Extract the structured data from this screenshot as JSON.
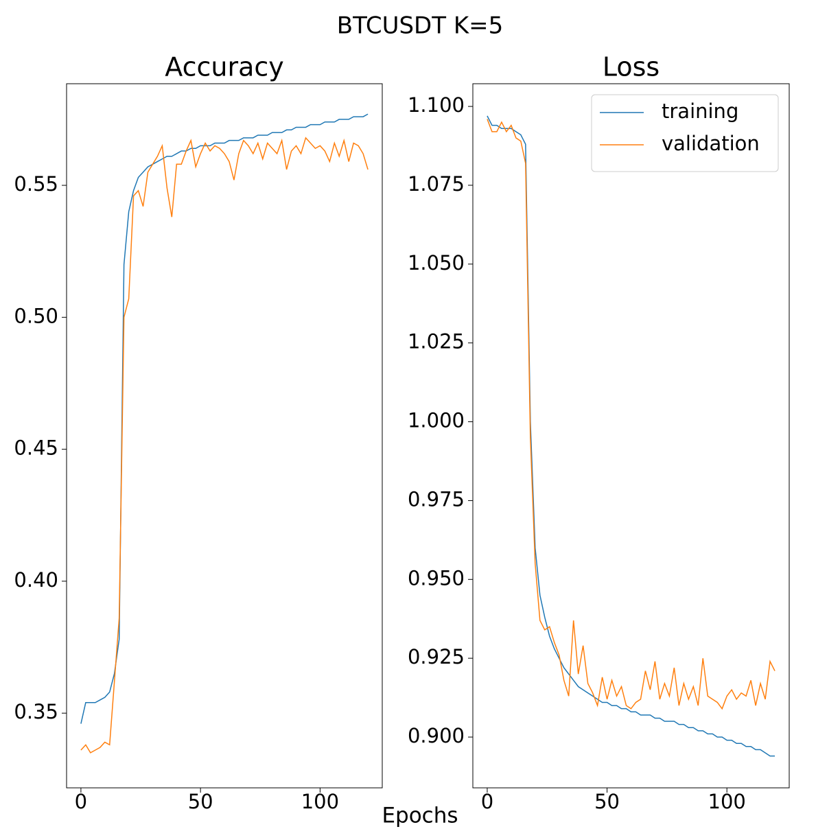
{
  "title": "BTCUSDT K=5",
  "xlabel": "Epochs",
  "chart_data": [
    {
      "type": "line",
      "title": "Accuracy",
      "x": [
        0,
        2,
        4,
        6,
        8,
        10,
        12,
        14,
        16,
        18,
        20,
        22,
        24,
        26,
        28,
        30,
        32,
        34,
        36,
        38,
        40,
        42,
        44,
        46,
        48,
        50,
        52,
        54,
        56,
        58,
        60,
        62,
        64,
        66,
        68,
        70,
        72,
        74,
        76,
        78,
        80,
        82,
        84,
        86,
        88,
        90,
        92,
        94,
        96,
        98,
        100,
        102,
        104,
        106,
        108,
        110,
        112,
        114,
        116,
        118,
        120
      ],
      "series": [
        {
          "color": "#1f77b4",
          "values": [
            0.346,
            0.354,
            0.354,
            0.354,
            0.355,
            0.356,
            0.358,
            0.365,
            0.378,
            0.52,
            0.54,
            0.548,
            0.553,
            0.555,
            0.557,
            0.558,
            0.559,
            0.56,
            0.561,
            0.561,
            0.562,
            0.563,
            0.563,
            0.564,
            0.564,
            0.565,
            0.565,
            0.565,
            0.566,
            0.566,
            0.566,
            0.567,
            0.567,
            0.567,
            0.568,
            0.568,
            0.568,
            0.569,
            0.569,
            0.569,
            0.57,
            0.57,
            0.57,
            0.571,
            0.571,
            0.572,
            0.572,
            0.572,
            0.573,
            0.573,
            0.573,
            0.574,
            0.574,
            0.574,
            0.575,
            0.575,
            0.575,
            0.576,
            0.576,
            0.576,
            0.577
          ]
        },
        {
          "color": "#ff7f0e",
          "values": [
            0.336,
            0.338,
            0.335,
            0.336,
            0.337,
            0.339,
            0.338,
            0.362,
            0.386,
            0.5,
            0.507,
            0.546,
            0.548,
            0.542,
            0.555,
            0.558,
            0.561,
            0.565,
            0.549,
            0.538,
            0.558,
            0.558,
            0.563,
            0.567,
            0.557,
            0.562,
            0.566,
            0.563,
            0.565,
            0.564,
            0.562,
            0.559,
            0.552,
            0.562,
            0.567,
            0.565,
            0.562,
            0.566,
            0.56,
            0.566,
            0.564,
            0.562,
            0.567,
            0.556,
            0.563,
            0.565,
            0.562,
            0.568,
            0.566,
            0.564,
            0.565,
            0.563,
            0.559,
            0.566,
            0.561,
            0.567,
            0.559,
            0.566,
            0.565,
            0.562,
            0.556
          ]
        }
      ],
      "xlim": [
        -6,
        126
      ],
      "xticks": [
        0,
        50,
        100
      ],
      "ylim": [
        0.3217,
        0.5885
      ],
      "yticks": [
        {
          "value": 0.35,
          "label": "0.35"
        },
        {
          "value": 0.4,
          "label": "0.40"
        },
        {
          "value": 0.45,
          "label": "0.45"
        },
        {
          "value": 0.5,
          "label": "0.50"
        },
        {
          "value": 0.55,
          "label": "0.55"
        }
      ]
    },
    {
      "type": "line",
      "title": "Loss",
      "x": [
        0,
        2,
        4,
        6,
        8,
        10,
        12,
        14,
        16,
        18,
        20,
        22,
        24,
        26,
        28,
        30,
        32,
        34,
        36,
        38,
        40,
        42,
        44,
        46,
        48,
        50,
        52,
        54,
        56,
        58,
        60,
        62,
        64,
        66,
        68,
        70,
        72,
        74,
        76,
        78,
        80,
        82,
        84,
        86,
        88,
        90,
        92,
        94,
        96,
        98,
        100,
        102,
        104,
        106,
        108,
        110,
        112,
        114,
        116,
        118,
        120
      ],
      "series": [
        {
          "name": "training",
          "color": "#1f77b4",
          "values": [
            1.097,
            1.094,
            1.094,
            1.093,
            1.093,
            1.093,
            1.092,
            1.091,
            1.088,
            1.0,
            0.96,
            0.945,
            0.938,
            0.932,
            0.928,
            0.925,
            0.922,
            0.92,
            0.918,
            0.916,
            0.915,
            0.914,
            0.913,
            0.912,
            0.911,
            0.911,
            0.91,
            0.91,
            0.909,
            0.909,
            0.908,
            0.908,
            0.907,
            0.907,
            0.907,
            0.906,
            0.906,
            0.905,
            0.905,
            0.905,
            0.904,
            0.904,
            0.903,
            0.903,
            0.902,
            0.902,
            0.901,
            0.901,
            0.9,
            0.9,
            0.899,
            0.899,
            0.898,
            0.898,
            0.897,
            0.897,
            0.896,
            0.896,
            0.895,
            0.894,
            0.894
          ]
        },
        {
          "name": "validation",
          "color": "#ff7f0e",
          "values": [
            1.096,
            1.092,
            1.092,
            1.095,
            1.092,
            1.094,
            1.09,
            1.089,
            1.082,
            0.995,
            0.955,
            0.937,
            0.934,
            0.935,
            0.93,
            0.926,
            0.918,
            0.913,
            0.937,
            0.92,
            0.929,
            0.917,
            0.914,
            0.91,
            0.919,
            0.912,
            0.918,
            0.913,
            0.916,
            0.91,
            0.909,
            0.911,
            0.912,
            0.921,
            0.915,
            0.924,
            0.912,
            0.917,
            0.913,
            0.922,
            0.91,
            0.917,
            0.912,
            0.916,
            0.91,
            0.925,
            0.913,
            0.912,
            0.911,
            0.909,
            0.913,
            0.915,
            0.912,
            0.914,
            0.913,
            0.918,
            0.91,
            0.917,
            0.912,
            0.924,
            0.921
          ]
        }
      ],
      "xlim": [
        -6,
        126
      ],
      "xticks": [
        0,
        50,
        100
      ],
      "ylim": [
        0.8839,
        1.1072
      ],
      "yticks": [
        {
          "value": 0.9,
          "label": "0.900"
        },
        {
          "value": 0.925,
          "label": "0.925"
        },
        {
          "value": 0.95,
          "label": "0.950"
        },
        {
          "value": 0.975,
          "label": "0.975"
        },
        {
          "value": 1.0,
          "label": "1.000"
        },
        {
          "value": 1.025,
          "label": "1.025"
        },
        {
          "value": 1.05,
          "label": "1.050"
        },
        {
          "value": 1.075,
          "label": "1.075"
        },
        {
          "value": 1.1,
          "label": "1.100"
        }
      ],
      "legend": "upper right"
    }
  ]
}
